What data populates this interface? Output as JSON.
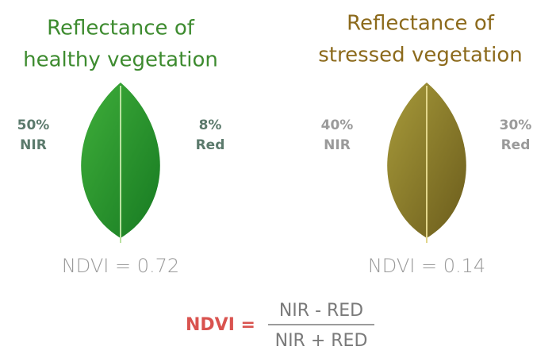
{
  "panels": [
    {
      "title_lines": [
        "Reflectance of",
        "healthy vegetation"
      ],
      "left": {
        "percent": "50%",
        "band": "NIR"
      },
      "right": {
        "percent": "8%",
        "band": "Red"
      },
      "ndvi": "NDVI = 0.72"
    },
    {
      "title_lines": [
        "Reflectance of",
        "stressed vegetation"
      ],
      "left": {
        "percent": "40%",
        "band": "NIR"
      },
      "right": {
        "percent": "30%",
        "band": "Red"
      },
      "ndvi": "NDVI = 0.14"
    }
  ],
  "formula": {
    "lhs": "NDVI =",
    "numerator": "NIR - RED",
    "denominator": "NIR + RED"
  }
}
